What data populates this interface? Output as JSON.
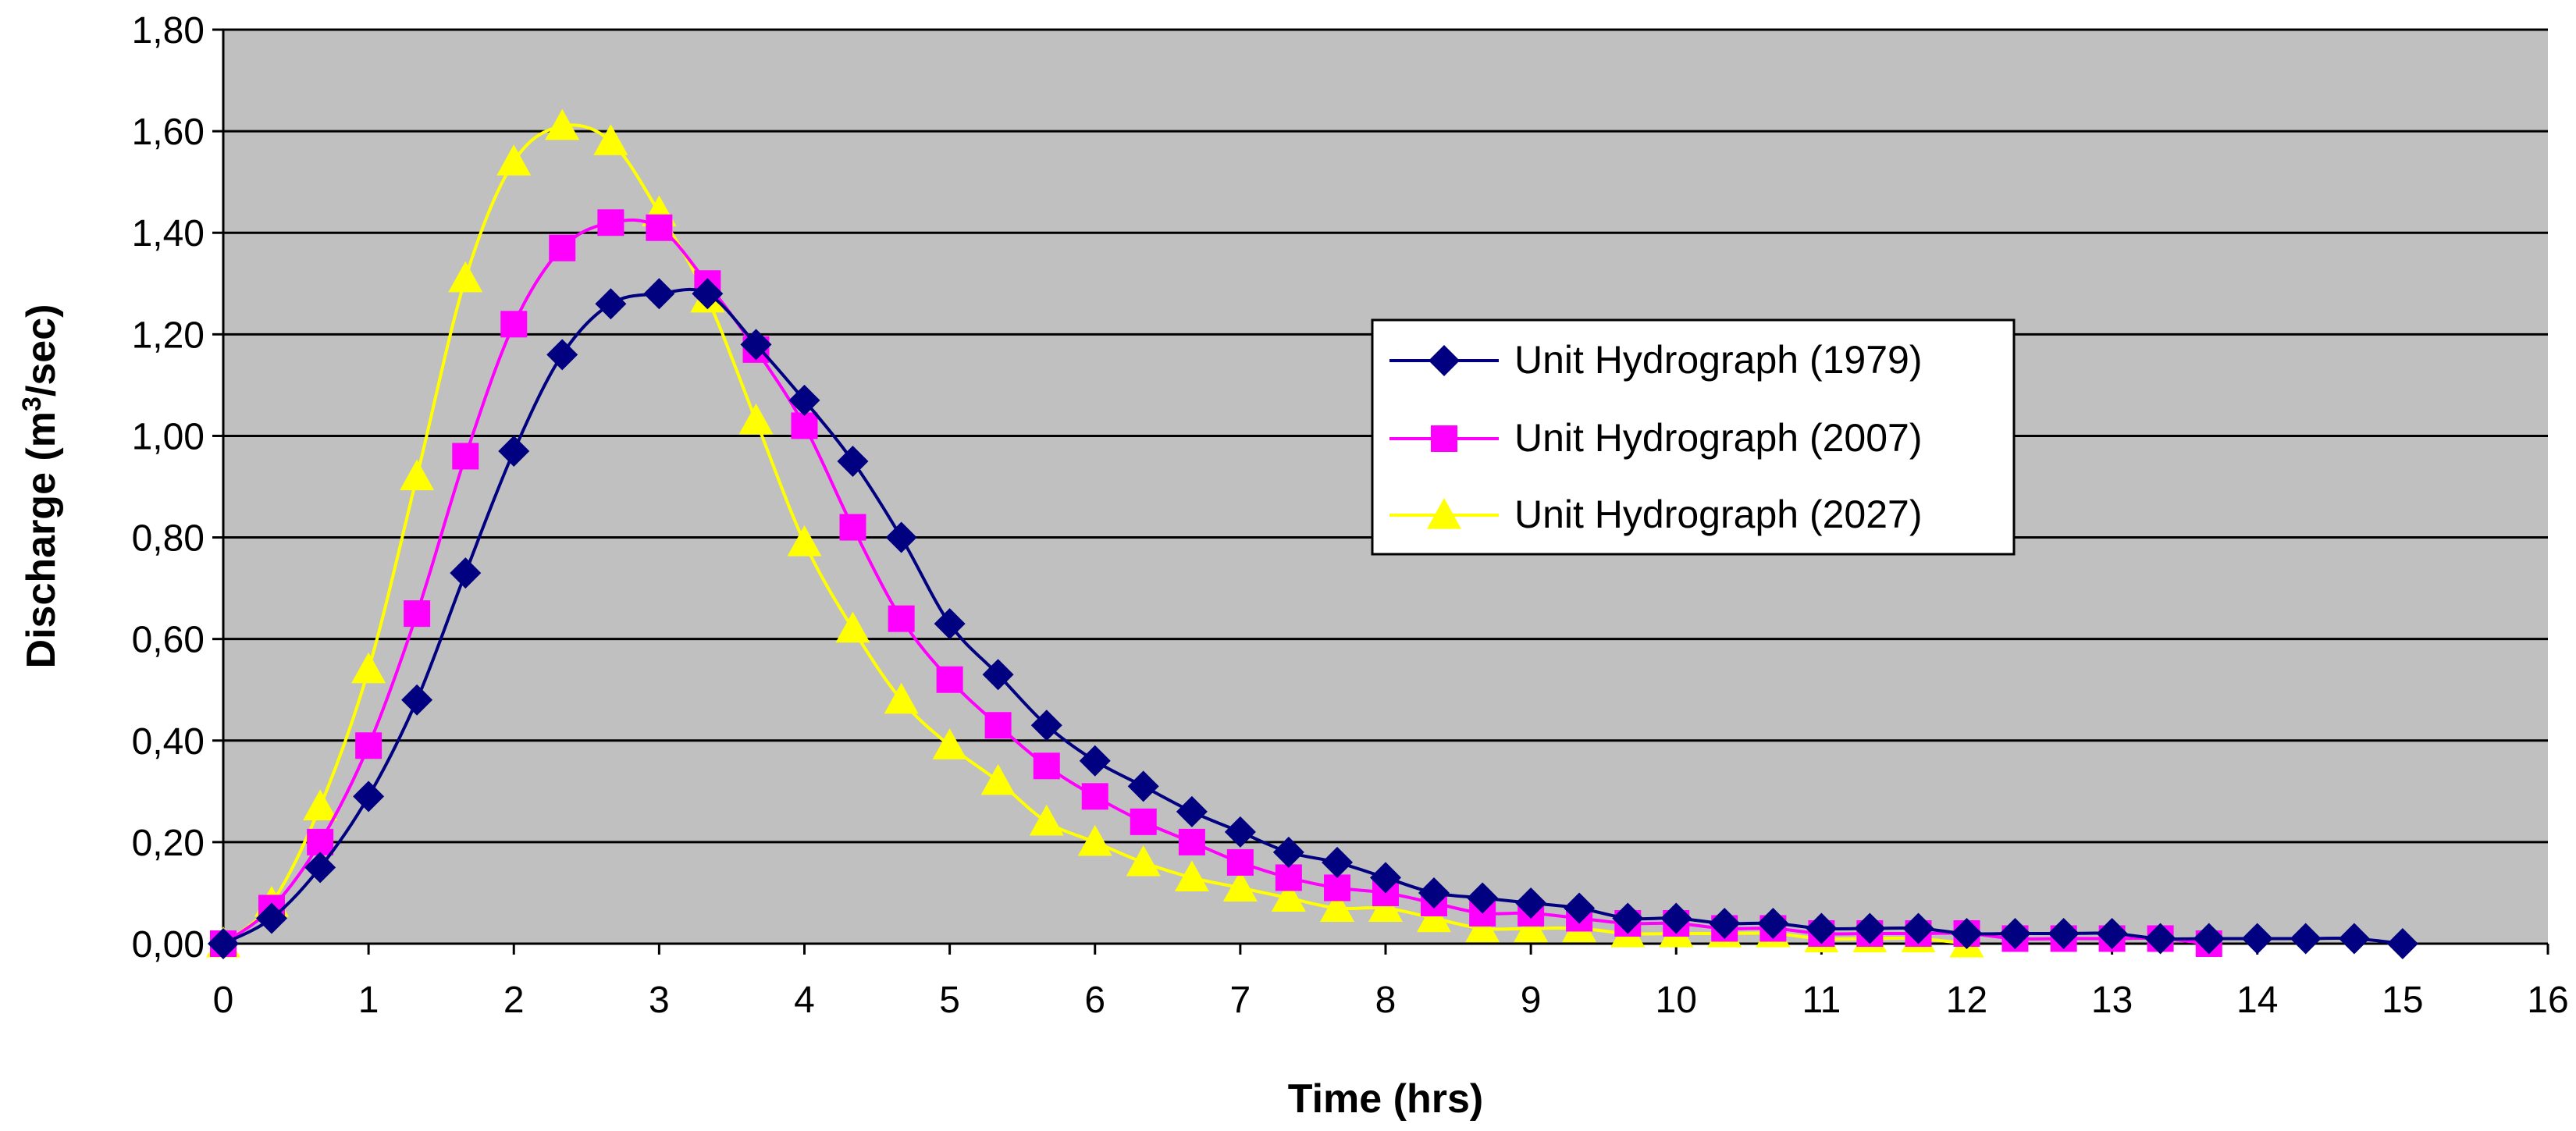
{
  "chart_data": {
    "type": "line",
    "title": "",
    "xlabel": "Time (hrs)",
    "ylabel_main": "Discharge (m",
    "ylabel_sup": "3",
    "ylabel_end": "/sec)",
    "xlim": [
      0,
      16
    ],
    "ylim": [
      0,
      1.8
    ],
    "xticks": [
      0,
      1,
      2,
      3,
      4,
      5,
      6,
      7,
      8,
      9,
      10,
      11,
      12,
      13,
      14,
      15,
      16
    ],
    "xtick_labels": [
      "0",
      "1",
      "2",
      "3",
      "4",
      "5",
      "6",
      "7",
      "8",
      "9",
      "10",
      "11",
      "12",
      "13",
      "14",
      "15",
      "16"
    ],
    "yticks": [
      0,
      0.2,
      0.4,
      0.6,
      0.8,
      1.0,
      1.2,
      1.4,
      1.6,
      1.8
    ],
    "ytick_labels": [
      "0,00",
      "0,20",
      "0,40",
      "0,60",
      "0,80",
      "1,00",
      "1,20",
      "1,40",
      "1,60",
      "1,80"
    ],
    "grid": "horizontal",
    "plot_background": "#c0c0c0",
    "legend_position": "right",
    "series": [
      {
        "name": "Unit Hydrograph (1979)",
        "color": "#000080",
        "marker": "diamond",
        "x": [
          0,
          0.333,
          0.667,
          1,
          1.333,
          1.667,
          2,
          2.333,
          2.667,
          3,
          3.333,
          3.667,
          4,
          4.333,
          4.667,
          5,
          5.333,
          5.667,
          6,
          6.333,
          6.667,
          7,
          7.333,
          7.667,
          8,
          8.333,
          8.667,
          9,
          9.333,
          9.667,
          10,
          10.333,
          10.667,
          11,
          11.333,
          11.667,
          12,
          12.333,
          12.667,
          13,
          13.333,
          13.667,
          14,
          14.333,
          14.667,
          15
        ],
        "values": [
          0,
          0.05,
          0.15,
          0.29,
          0.48,
          0.73,
          0.97,
          1.16,
          1.26,
          1.28,
          1.28,
          1.18,
          1.07,
          0.95,
          0.8,
          0.63,
          0.53,
          0.43,
          0.36,
          0.31,
          0.26,
          0.22,
          0.18,
          0.16,
          0.13,
          0.1,
          0.09,
          0.08,
          0.07,
          0.05,
          0.05,
          0.04,
          0.04,
          0.03,
          0.03,
          0.03,
          0.02,
          0.02,
          0.02,
          0.02,
          0.01,
          0.01,
          0.01,
          0.01,
          0.01,
          0
        ]
      },
      {
        "name": "Unit Hydrograph (2007)",
        "color": "#ff00ff",
        "marker": "square",
        "x": [
          0,
          0.333,
          0.667,
          1,
          1.333,
          1.667,
          2,
          2.333,
          2.667,
          3,
          3.333,
          3.667,
          4,
          4.333,
          4.667,
          5,
          5.333,
          5.667,
          6,
          6.333,
          6.667,
          7,
          7.333,
          7.667,
          8,
          8.333,
          8.667,
          9,
          9.333,
          9.667,
          10,
          10.333,
          10.667,
          11,
          11.333,
          11.667,
          12,
          12.333,
          12.667,
          13,
          13.333,
          13.667
        ],
        "values": [
          0,
          0.07,
          0.2,
          0.39,
          0.65,
          0.96,
          1.22,
          1.37,
          1.42,
          1.41,
          1.3,
          1.17,
          1.02,
          0.82,
          0.64,
          0.52,
          0.43,
          0.35,
          0.29,
          0.24,
          0.2,
          0.16,
          0.13,
          0.11,
          0.1,
          0.08,
          0.06,
          0.06,
          0.05,
          0.04,
          0.04,
          0.03,
          0.03,
          0.02,
          0.02,
          0.02,
          0.02,
          0.01,
          0.01,
          0.01,
          0.01,
          0
        ]
      },
      {
        "name": "Unit Hydrograph (2027)",
        "color": "#ffff00",
        "marker": "triangle",
        "x": [
          0,
          0.333,
          0.667,
          1,
          1.333,
          1.667,
          2,
          2.333,
          2.667,
          3,
          3.333,
          3.667,
          4,
          4.333,
          4.667,
          5,
          5.333,
          5.667,
          6,
          6.333,
          6.667,
          7,
          7.333,
          7.667,
          8,
          8.333,
          8.667,
          9,
          9.333,
          9.667,
          10,
          10.333,
          10.667,
          11,
          11.333,
          11.667,
          12
        ],
        "values": [
          0,
          0.08,
          0.27,
          0.54,
          0.92,
          1.31,
          1.54,
          1.61,
          1.58,
          1.44,
          1.27,
          1.03,
          0.79,
          0.62,
          0.48,
          0.39,
          0.32,
          0.24,
          0.2,
          0.16,
          0.13,
          0.11,
          0.09,
          0.07,
          0.07,
          0.05,
          0.03,
          0.03,
          0.03,
          0.02,
          0.02,
          0.02,
          0.02,
          0.01,
          0.01,
          0.01,
          0
        ]
      }
    ]
  }
}
